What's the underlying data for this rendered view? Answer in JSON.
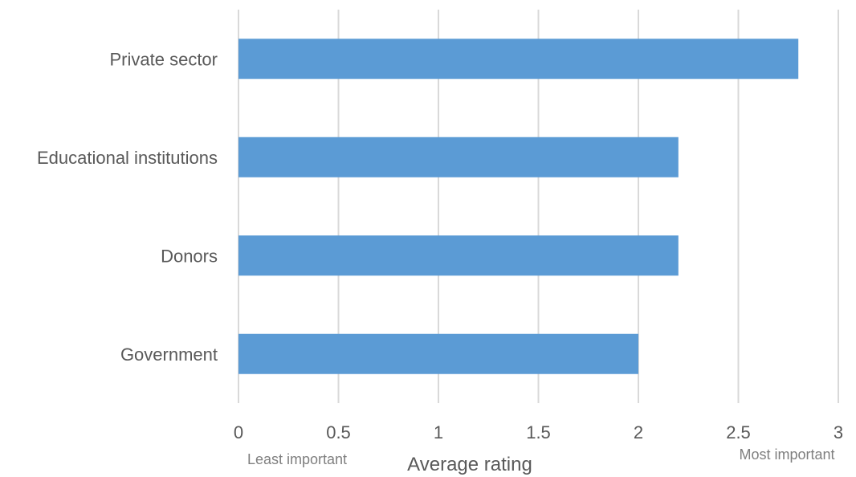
{
  "chart_data": {
    "type": "bar",
    "orientation": "horizontal",
    "categories": [
      "Private sector",
      "Educational institutions",
      "Donors",
      "Government"
    ],
    "values": [
      2.8,
      2.2,
      2.2,
      2.0
    ],
    "xlabel": "Average rating",
    "xlim": [
      0,
      3
    ],
    "xticks": [
      "0",
      "0.5",
      "1",
      "1.5",
      "2",
      "2.5",
      "3"
    ],
    "xtick_values": [
      0,
      0.5,
      1,
      1.5,
      2,
      2.5,
      3
    ],
    "x_min_note": "Least important",
    "x_max_note": "Most important",
    "grid": "vertical",
    "bar_color": "#5b9bd5",
    "grid_color": "#d9d9d9"
  }
}
